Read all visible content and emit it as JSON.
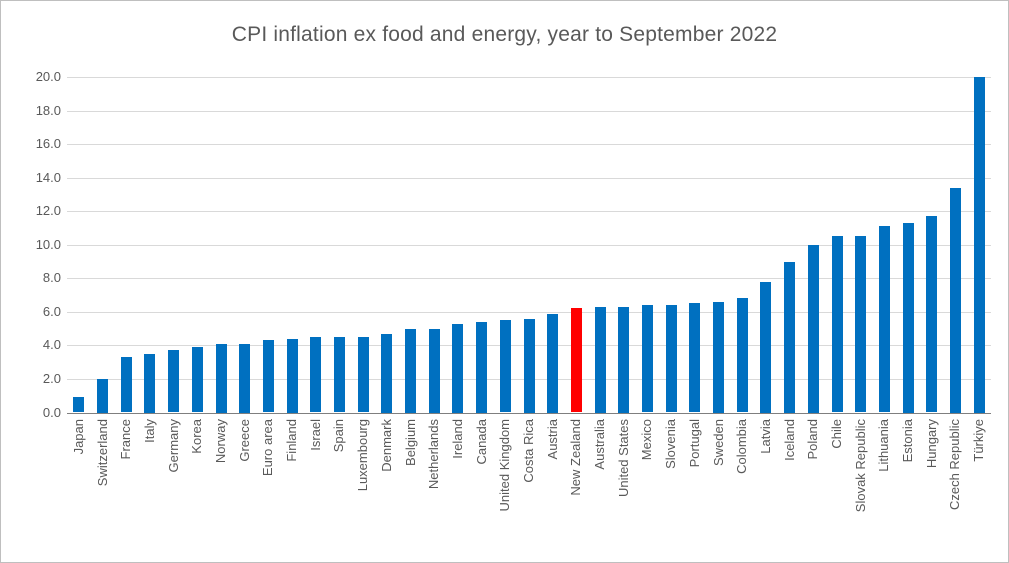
{
  "chart_data": {
    "type": "bar",
    "title": "CPI inflation ex food and energy, year to September 2022",
    "categories": [
      "Japan",
      "Switzerland",
      "France",
      "Italy",
      "Germany",
      "Korea",
      "Norway",
      "Greece",
      "Euro area",
      "Finland",
      "Israel",
      "Spain",
      "Luxembourg",
      "Denmark",
      "Belgium",
      "Netherlands",
      "Ireland",
      "Canada",
      "United Kingdom",
      "Costa Rica",
      "Austria",
      "New Zealand",
      "Australia",
      "United States",
      "Mexico",
      "Slovenia",
      "Portugal",
      "Sweden",
      "Colombia",
      "Latvia",
      "Iceland",
      "Poland",
      "Chile",
      "Slovak Republic",
      "Lithuania",
      "Estonia",
      "Hungary",
      "Czech Republic",
      "Türkiye"
    ],
    "values": [
      0.9,
      2.0,
      3.3,
      3.5,
      3.7,
      3.9,
      4.1,
      4.1,
      4.3,
      4.4,
      4.5,
      4.5,
      4.5,
      4.7,
      5.0,
      5.0,
      5.3,
      5.4,
      5.5,
      5.6,
      5.9,
      6.2,
      6.3,
      6.3,
      6.4,
      6.4,
      6.5,
      6.6,
      6.8,
      7.8,
      9.0,
      10.0,
      10.5,
      10.5,
      11.1,
      11.3,
      11.7,
      13.4,
      20.0
    ],
    "highlight_category": "New Zealand",
    "bar_color": "#0070c0",
    "highlight_color": "#ff0000",
    "xlabel": "",
    "ylabel": "",
    "ylim": [
      0,
      20
    ],
    "ytick_step": 2,
    "ytick_labels": [
      "0.0",
      "2.0",
      "4.0",
      "6.0",
      "8.0",
      "10.0",
      "12.0",
      "14.0",
      "16.0",
      "18.0",
      "20.0"
    ],
    "grid": true,
    "legend": "none"
  }
}
